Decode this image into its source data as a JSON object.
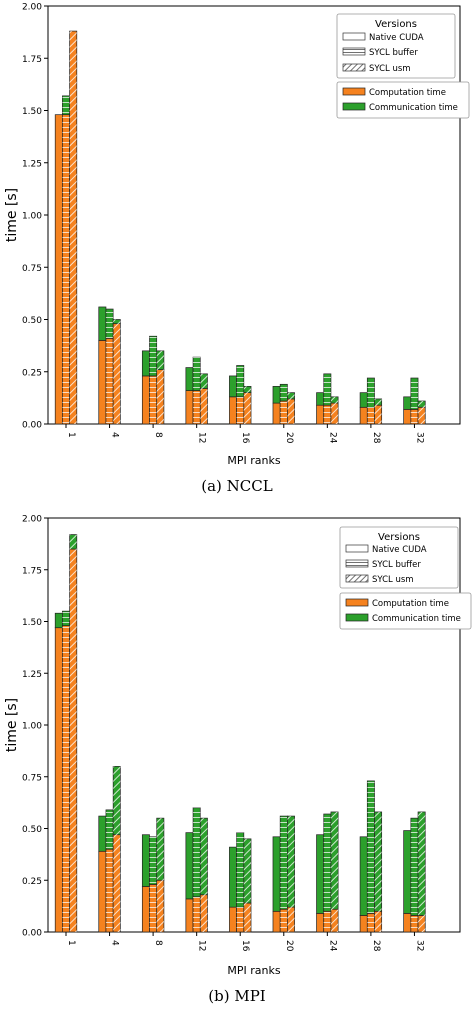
{
  "colors": {
    "computation": "#f5821f",
    "communication": "#2ca02c",
    "edge": "#222222",
    "hatch": "#ffffff"
  },
  "chart_data": [
    {
      "type": "bar",
      "stacked": true,
      "caption": "(a)  NCCL",
      "xlabel": "MPI ranks",
      "ylabel": "time [s]",
      "ylim": [
        0,
        2.0
      ],
      "yticks": [
        "0.00",
        "0.25",
        "0.50",
        "0.75",
        "1.00",
        "1.25",
        "1.50",
        "1.75",
        "2.00"
      ],
      "categories": [
        "1",
        "4",
        "8",
        "12",
        "16",
        "20",
        "24",
        "28",
        "32"
      ],
      "grid": false,
      "legend": {
        "position": "top-right",
        "versions_title": "Versions",
        "versions": [
          "Native CUDA",
          "SYCL buffer",
          "SYCL usm"
        ],
        "components": [
          "Computation time",
          "Communication time"
        ]
      },
      "series": [
        {
          "version": "Native CUDA",
          "computation": [
            1.48,
            0.4,
            0.23,
            0.16,
            0.13,
            0.1,
            0.09,
            0.08,
            0.07
          ],
          "communication": [
            0.0,
            0.16,
            0.12,
            0.11,
            0.1,
            0.08,
            0.06,
            0.07,
            0.06
          ]
        },
        {
          "version": "SYCL buffer",
          "computation": [
            1.48,
            0.41,
            0.23,
            0.16,
            0.13,
            0.11,
            0.09,
            0.08,
            0.07
          ],
          "communication": [
            0.09,
            0.14,
            0.19,
            0.16,
            0.15,
            0.08,
            0.15,
            0.14,
            0.15
          ]
        },
        {
          "version": "SYCL usm",
          "computation": [
            1.88,
            0.48,
            0.26,
            0.17,
            0.15,
            0.12,
            0.1,
            0.09,
            0.08
          ],
          "communication": [
            0.0,
            0.02,
            0.09,
            0.07,
            0.03,
            0.03,
            0.03,
            0.03,
            0.03
          ]
        }
      ]
    },
    {
      "type": "bar",
      "stacked": true,
      "caption": "(b)  MPI",
      "xlabel": "MPI ranks",
      "ylabel": "time [s]",
      "ylim": [
        0,
        2.0
      ],
      "yticks": [
        "0.00",
        "0.25",
        "0.50",
        "0.75",
        "1.00",
        "1.25",
        "1.50",
        "1.75",
        "2.00"
      ],
      "categories": [
        "1",
        "4",
        "8",
        "12",
        "16",
        "20",
        "24",
        "28",
        "32"
      ],
      "grid": false,
      "legend": {
        "position": "top-right",
        "versions_title": "Versions",
        "versions": [
          "Native CUDA",
          "SYCL buffer",
          "SYCL usm"
        ],
        "components": [
          "Computation time",
          "Communication time"
        ]
      },
      "series": [
        {
          "version": "Native CUDA",
          "computation": [
            1.47,
            0.39,
            0.22,
            0.16,
            0.12,
            0.1,
            0.09,
            0.08,
            0.09
          ],
          "communication": [
            0.07,
            0.17,
            0.25,
            0.32,
            0.29,
            0.36,
            0.38,
            0.38,
            0.4
          ]
        },
        {
          "version": "SYCL buffer",
          "computation": [
            1.48,
            0.4,
            0.23,
            0.17,
            0.12,
            0.11,
            0.1,
            0.09,
            0.08
          ],
          "communication": [
            0.07,
            0.19,
            0.23,
            0.43,
            0.36,
            0.45,
            0.47,
            0.64,
            0.47
          ]
        },
        {
          "version": "SYCL usm",
          "computation": [
            1.85,
            0.47,
            0.25,
            0.18,
            0.14,
            0.12,
            0.11,
            0.1,
            0.08
          ],
          "communication": [
            0.07,
            0.33,
            0.3,
            0.37,
            0.31,
            0.44,
            0.47,
            0.48,
            0.5
          ]
        }
      ]
    }
  ]
}
